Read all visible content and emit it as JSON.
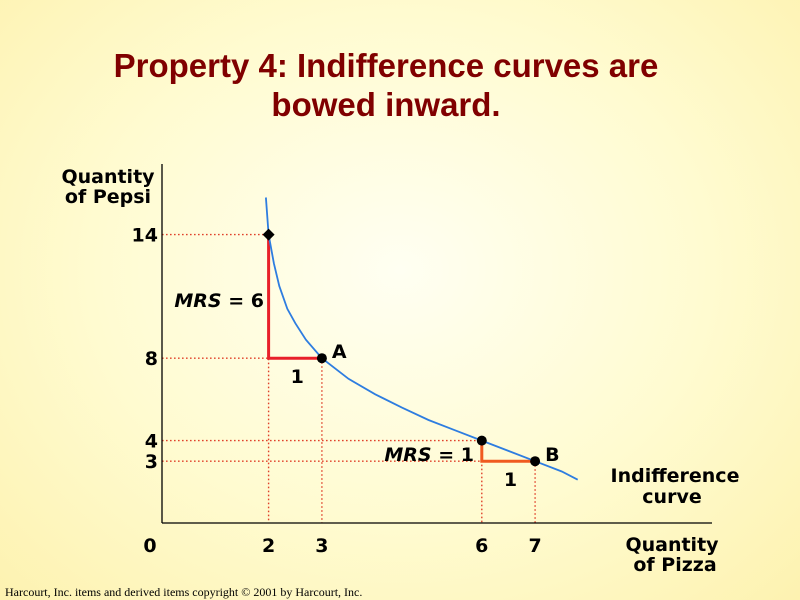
{
  "title": {
    "line1": "Property 4: Indifference curves are",
    "line2": "bowed inward."
  },
  "credit": "Harcourt, Inc. items and derived items copyright © 2001 by Harcourt, Inc.",
  "colors": {
    "title": "#800000",
    "curve": "#2e7de0",
    "guide": "#e0402a",
    "mrs_left": "#e8202a",
    "mrs_right": "#f05a20"
  },
  "chart_data": {
    "type": "line",
    "title": "Property 4: Indifference curves are bowed inward.",
    "xlabel": [
      "Quantity",
      "of Pizza"
    ],
    "ylabel": [
      "Quantity",
      "of Pepsi"
    ],
    "origin_label": "0",
    "xlim": [
      0,
      8.3
    ],
    "ylim": [
      0,
      17
    ],
    "x_ticks": [
      {
        "value": 2,
        "label": "2"
      },
      {
        "value": 3,
        "label": "3"
      },
      {
        "value": 6,
        "label": "6"
      },
      {
        "value": 7,
        "label": "7"
      }
    ],
    "y_ticks": [
      {
        "value": 14,
        "label": "14"
      },
      {
        "value": 8,
        "label": "8"
      },
      {
        "value": 4,
        "label": "4"
      },
      {
        "value": 3,
        "label": "3"
      }
    ],
    "curve_label": [
      "Indifference",
      "curve"
    ],
    "curve": {
      "x": [
        1.95,
        2.0,
        2.1,
        2.2,
        2.35,
        2.5,
        2.7,
        3.0,
        3.5,
        4.0,
        4.5,
        5.0,
        5.5,
        6.0,
        6.5,
        7.0,
        7.5,
        7.8
      ],
      "y": [
        15.8,
        14.0,
        12.6,
        11.5,
        10.4,
        9.7,
        8.9,
        8.0,
        7.0,
        6.25,
        5.6,
        5.0,
        4.5,
        4.0,
        3.5,
        3.0,
        2.5,
        2.1
      ]
    },
    "points": [
      {
        "x": 2,
        "y": 14,
        "label": "",
        "marker": "diamond"
      },
      {
        "x": 3,
        "y": 8,
        "label": "A",
        "marker": "circle"
      },
      {
        "x": 6,
        "y": 4,
        "label": "",
        "marker": "circle"
      },
      {
        "x": 7,
        "y": 3,
        "label": "B",
        "marker": "circle"
      }
    ],
    "annotations": [
      {
        "from": [
          2,
          14
        ],
        "to": [
          3,
          8
        ],
        "mrs_prefix": "MRS",
        "mrs_suffix": "= 6",
        "run_label": "1"
      },
      {
        "from": [
          6,
          4
        ],
        "to": [
          7,
          3
        ],
        "mrs_prefix": "MRS",
        "mrs_suffix": "= 1",
        "run_label": "1"
      }
    ]
  }
}
